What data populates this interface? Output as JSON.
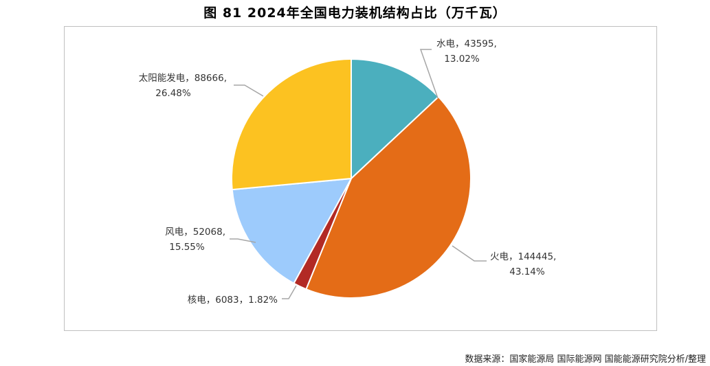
{
  "title": "图 81 2024年全国电力装机结构占比（万千瓦）",
  "source": "数据来源：国家能源局 国际能源网 国能能源研究院分析/整理",
  "chart_data": {
    "type": "pie",
    "title": "图 81 2024年全国电力装机结构占比（万千瓦）",
    "start": "top-clockwise",
    "slices": [
      {
        "name": "水电",
        "value": 43595,
        "percent": 13.02,
        "color": "#4BAFBE",
        "line1": "水电，43595,",
        "line2": "13.02%"
      },
      {
        "name": "火电",
        "value": 144445,
        "percent": 43.14,
        "color": "#E46C17",
        "line1": "火电，144445,",
        "line2": "43.14%"
      },
      {
        "name": "核电",
        "value": 6083,
        "percent": 1.82,
        "color": "#B22A25",
        "line1": "核电，6083，1.82%",
        "line2": ""
      },
      {
        "name": "风电",
        "value": 52068,
        "percent": 15.55,
        "color": "#9DCBFC",
        "line1": "风电，52068,",
        "line2": "15.55%"
      },
      {
        "name": "太阳能发电",
        "value": 88666,
        "percent": 26.48,
        "color": "#FCC221",
        "line1": "太阳能发电，88666,",
        "line2": "26.48%"
      }
    ]
  }
}
